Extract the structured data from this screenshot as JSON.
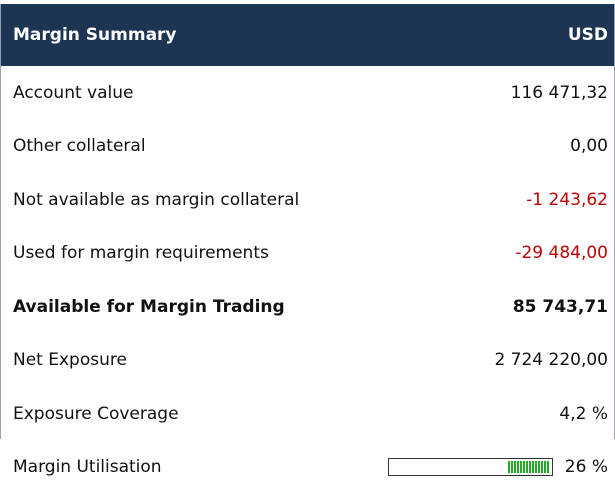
{
  "header": {
    "title": "Margin Summary",
    "currency": "USD"
  },
  "rows": [
    {
      "label": "Account value",
      "value": "116 471,32",
      "negative": false,
      "bold": false
    },
    {
      "label": "Other collateral",
      "value": "0,00",
      "negative": false,
      "bold": false
    },
    {
      "label": "Not available as margin collateral",
      "value": "-1 243,62",
      "negative": true,
      "bold": false
    },
    {
      "label": "Used for margin requirements",
      "value": "-29 484,00",
      "negative": true,
      "bold": false
    },
    {
      "label": "Available for Margin Trading",
      "value": "85 743,71",
      "negative": false,
      "bold": true
    },
    {
      "label": "Net Exposure",
      "value": "2 724 220,00",
      "negative": false,
      "bold": false
    },
    {
      "label": "Exposure Coverage",
      "value": "4,2 %",
      "negative": false,
      "bold": false
    }
  ],
  "utilisation": {
    "label": "Margin Utilisation",
    "value": 26,
    "value_label": "26 %",
    "color": "#22aa22"
  }
}
